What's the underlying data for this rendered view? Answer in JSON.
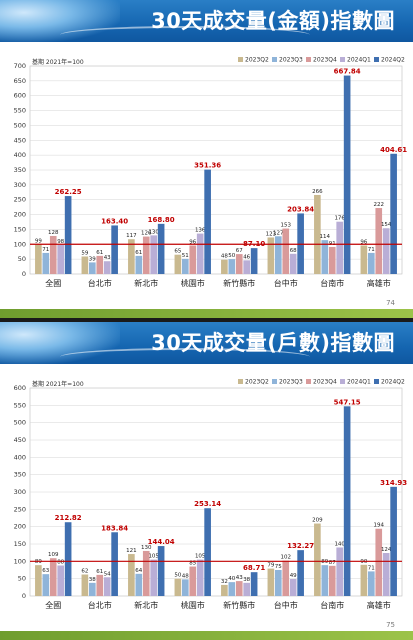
{
  "slides": [
    {
      "title": "30天成交量(金額)指數圖",
      "page": "74",
      "chart_data": {
        "type": "bar",
        "title": "30天成交量(金額)指數圖",
        "base_note": "基期 2021年=100",
        "categories": [
          "全國",
          "台北市",
          "新北市",
          "桃園市",
          "新竹縣市",
          "台中市",
          "台南市",
          "高雄市"
        ],
        "series": [
          {
            "name": "2023Q2",
            "color": "#c9b98f",
            "values": [
              99,
              59,
              117,
              65,
              48,
              123,
              266,
              96
            ]
          },
          {
            "name": "2023Q3",
            "color": "#8fb4d9",
            "values": [
              71,
              39,
              61,
              51,
              50,
              127,
              114,
              71
            ]
          },
          {
            "name": "2023Q4",
            "color": "#d99a9a",
            "values": [
              128,
              61,
              126,
              96,
              67,
              153,
              91,
              222
            ]
          },
          {
            "name": "2024Q1",
            "color": "#b9aed6",
            "values": [
              98,
              43,
              130,
              136,
              46,
              68,
              176,
              154
            ]
          },
          {
            "name": "2024Q2",
            "color": "#3f6fb0",
            "values": [
              262.25,
              163.4,
              168.8,
              351.36,
              87.1,
              203.84,
              667.84,
              404.61
            ]
          }
        ],
        "highlight_labels": [
          "262.25",
          "163.40",
          "168.80",
          "351.36",
          "87.10",
          "203.84",
          "667.84",
          "404.61"
        ],
        "ylim": [
          0,
          700
        ],
        "ytick_step": 50,
        "reference_line": 100,
        "reference_color": "#c00000",
        "highlight_color": "#c00000",
        "grid": true,
        "legend": "top-right"
      }
    },
    {
      "title": "30天成交量(戶數)指數圖",
      "page": "75",
      "chart_data": {
        "type": "bar",
        "title": "30天成交量(戶數)指數圖",
        "base_note": "基期 2021年=100",
        "categories": [
          "全國",
          "台北市",
          "新北市",
          "桃園市",
          "新竹縣市",
          "台中市",
          "台南市",
          "高雄市"
        ],
        "series": [
          {
            "name": "2023Q2",
            "color": "#c9b98f",
            "values": [
              89,
              62,
              121,
              50,
              32,
              79,
              209,
              90
            ]
          },
          {
            "name": "2023Q3",
            "color": "#8fb4d9",
            "values": [
              63,
              38,
              64,
              48,
              40,
              75,
              89,
              71
            ]
          },
          {
            "name": "2023Q4",
            "color": "#d99a9a",
            "values": [
              109,
              61,
              130,
              85,
              43,
              102,
              87,
              194
            ]
          },
          {
            "name": "2024Q1",
            "color": "#b9aed6",
            "values": [
              88,
              54,
              105,
              105,
              38,
              49,
              140,
              124
            ]
          },
          {
            "name": "2024Q2",
            "color": "#3f6fb0",
            "values": [
              212.82,
              183.84,
              144.04,
              253.14,
              68.71,
              132.27,
              547.15,
              314.93
            ]
          }
        ],
        "highlight_labels": [
          "212.82",
          "183.84",
          "144.04",
          "253.14",
          "68.71",
          "132.27",
          "547.15",
          "314.93"
        ],
        "ylim": [
          0,
          600
        ],
        "ytick_step": 50,
        "reference_line": 100,
        "reference_color": "#c00000",
        "highlight_color": "#c00000",
        "grid": true,
        "legend": "top-right"
      }
    }
  ]
}
